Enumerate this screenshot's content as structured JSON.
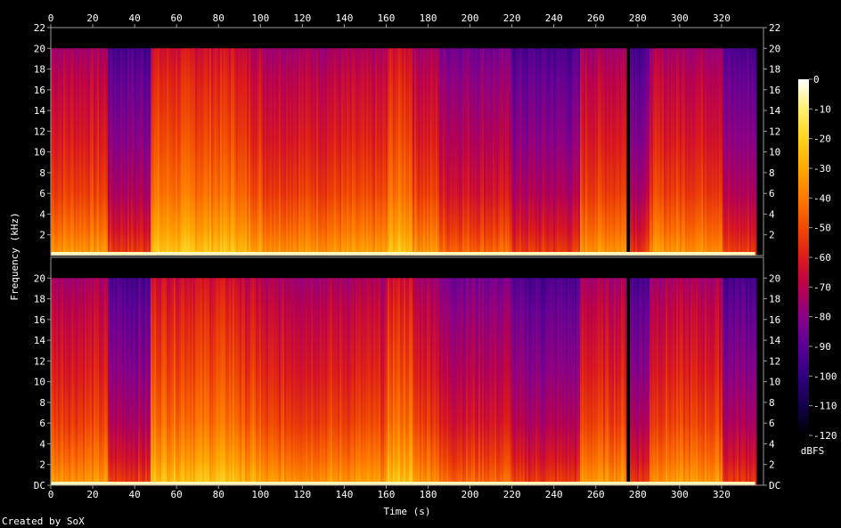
{
  "credit": "Created by SoX",
  "chart_data": {
    "type": "heatmap",
    "title": "",
    "xlabel": "Time (s)",
    "ylabel": "Frequency (kHz)",
    "xlim": [
      0,
      340
    ],
    "ylim": [
      0,
      22
    ],
    "x_ticks": [
      "0",
      "20",
      "40",
      "60",
      "80",
      "100",
      "120",
      "140",
      "160",
      "180",
      "200",
      "220",
      "240",
      "260",
      "280",
      "300",
      "320"
    ],
    "x_tick_values": [
      0,
      20,
      40,
      60,
      80,
      100,
      120,
      140,
      160,
      180,
      200,
      220,
      240,
      260,
      280,
      300,
      320
    ],
    "channels": [
      {
        "y_ticks": [
          "2",
          "4",
          "6",
          "8",
          "10",
          "12",
          "14",
          "16",
          "18",
          "20",
          "22"
        ],
        "y_tick_values": [
          2,
          4,
          6,
          8,
          10,
          12,
          14,
          16,
          18,
          20,
          22
        ]
      },
      {
        "y_ticks": [
          "DC",
          "2",
          "4",
          "6",
          "8",
          "10",
          "12",
          "14",
          "16",
          "18",
          "20"
        ],
        "y_tick_values": [
          0,
          2,
          4,
          6,
          8,
          10,
          12,
          14,
          16,
          18,
          20
        ]
      }
    ],
    "colorbar": {
      "label": "dBFS",
      "ticks": [
        "0",
        "-10",
        "-20",
        "-30",
        "-40",
        "-50",
        "-60",
        "-70",
        "-80",
        "-90",
        "-100",
        "-110",
        "-120"
      ],
      "tick_values": [
        0,
        -10,
        -20,
        -30,
        -40,
        -50,
        -60,
        -70,
        -80,
        -90,
        -100,
        -110,
        -120
      ],
      "range": [
        -120,
        0
      ],
      "colors": [
        "#000000",
        "#13004a",
        "#300080",
        "#5a0096",
        "#8a0088",
        "#b8004e",
        "#dc1a1a",
        "#f04a00",
        "#ff7a00",
        "#ffa800",
        "#ffd21e",
        "#ffef70",
        "#ffffff"
      ]
    },
    "content_end_s": 336,
    "frequency_cutoff_khz": 20,
    "segments": [
      {
        "start": 0,
        "end": 27,
        "level_db": -60
      },
      {
        "start": 27,
        "end": 47,
        "level_db": -80
      },
      {
        "start": 47,
        "end": 90,
        "level_db": -50
      },
      {
        "start": 90,
        "end": 100,
        "level_db": -55
      },
      {
        "start": 100,
        "end": 160,
        "level_db": -60
      },
      {
        "start": 160,
        "end": 172,
        "level_db": -50
      },
      {
        "start": 172,
        "end": 185,
        "level_db": -60
      },
      {
        "start": 185,
        "end": 220,
        "level_db": -70
      },
      {
        "start": 220,
        "end": 252,
        "level_db": -80
      },
      {
        "start": 252,
        "end": 274,
        "level_db": -60
      },
      {
        "start": 274,
        "end": 276,
        "level_db": -120
      },
      {
        "start": 276,
        "end": 285,
        "level_db": -80
      },
      {
        "start": 285,
        "end": 320,
        "level_db": -60
      },
      {
        "start": 320,
        "end": 336,
        "level_db": -80
      }
    ]
  }
}
